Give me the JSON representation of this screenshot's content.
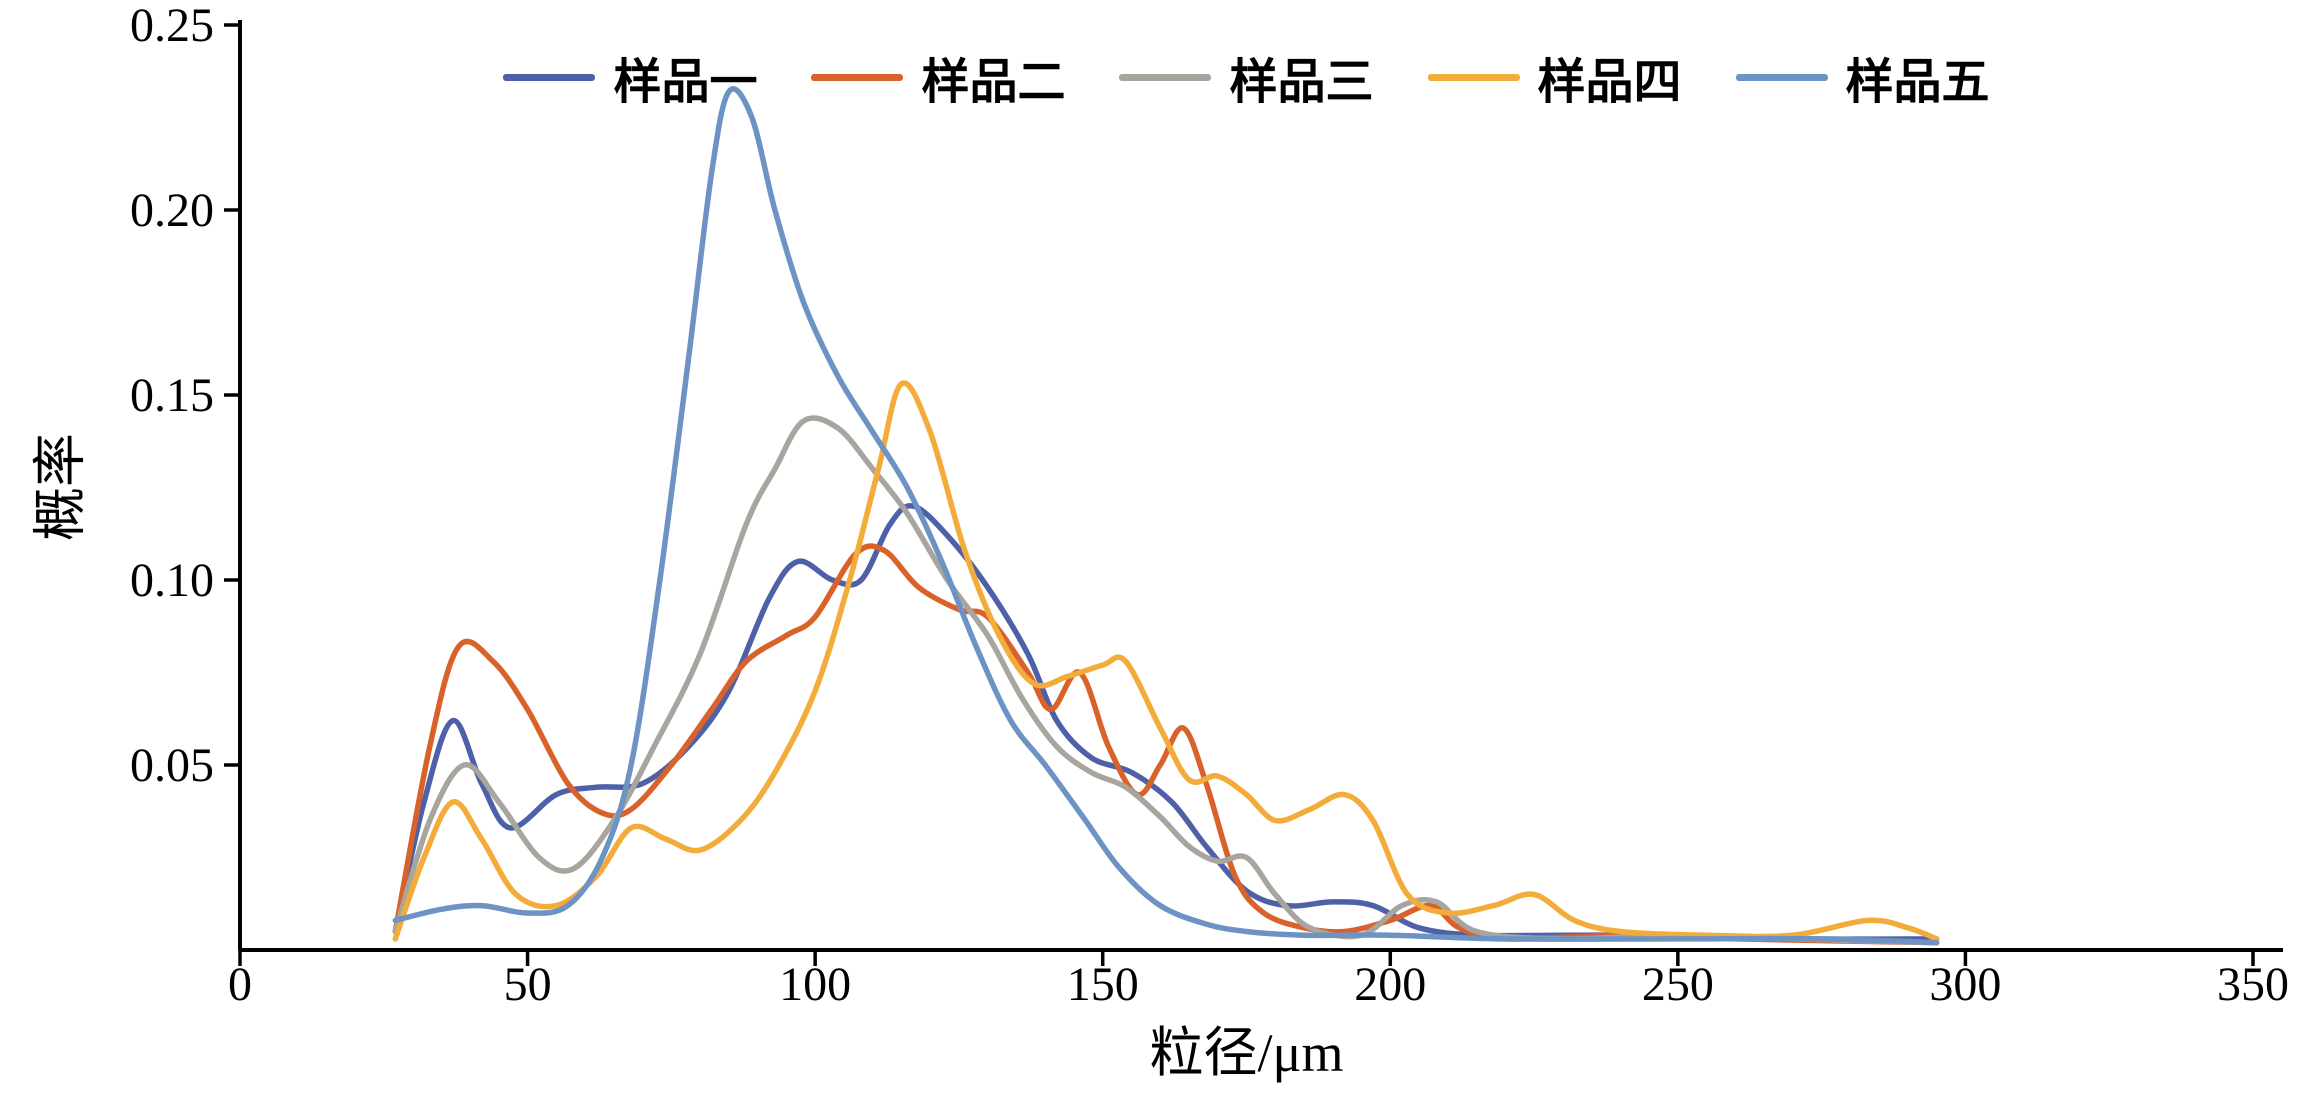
{
  "chart_data": {
    "type": "line",
    "title": "",
    "xlabel": "粒径/μm",
    "ylabel": "概率",
    "xlim": [
      0,
      350
    ],
    "ylim": [
      0,
      0.25
    ],
    "xticks": [
      0,
      50,
      100,
      150,
      200,
      250,
      300,
      350
    ],
    "yticks": [
      0.05,
      0.1,
      0.15,
      0.2,
      0.25
    ],
    "grid": false,
    "legend_position": "top-inside",
    "axis_color": "#000000",
    "series": [
      {
        "name": "样品一",
        "color": "#4e61a8",
        "points": [
          [
            27,
            0.005
          ],
          [
            32,
            0.04
          ],
          [
            37,
            0.062
          ],
          [
            42,
            0.045
          ],
          [
            47,
            0.033
          ],
          [
            55,
            0.042
          ],
          [
            62,
            0.044
          ],
          [
            70,
            0.045
          ],
          [
            78,
            0.055
          ],
          [
            85,
            0.07
          ],
          [
            92,
            0.095
          ],
          [
            97,
            0.105
          ],
          [
            103,
            0.1
          ],
          [
            108,
            0.1
          ],
          [
            113,
            0.115
          ],
          [
            117,
            0.12
          ],
          [
            123,
            0.112
          ],
          [
            130,
            0.098
          ],
          [
            137,
            0.08
          ],
          [
            142,
            0.062
          ],
          [
            148,
            0.052
          ],
          [
            155,
            0.048
          ],
          [
            162,
            0.04
          ],
          [
            168,
            0.028
          ],
          [
            175,
            0.016
          ],
          [
            182,
            0.012
          ],
          [
            190,
            0.013
          ],
          [
            197,
            0.012
          ],
          [
            205,
            0.006
          ],
          [
            215,
            0.004
          ],
          [
            230,
            0.004
          ],
          [
            250,
            0.004
          ],
          [
            270,
            0.003
          ],
          [
            295,
            0.003
          ]
        ]
      },
      {
        "name": "样品二",
        "color": "#d9622b",
        "points": [
          [
            27,
            0.005
          ],
          [
            33,
            0.055
          ],
          [
            38,
            0.082
          ],
          [
            44,
            0.078
          ],
          [
            50,
            0.065
          ],
          [
            57,
            0.045
          ],
          [
            63,
            0.037
          ],
          [
            68,
            0.038
          ],
          [
            75,
            0.05
          ],
          [
            82,
            0.065
          ],
          [
            88,
            0.078
          ],
          [
            95,
            0.085
          ],
          [
            100,
            0.09
          ],
          [
            107,
            0.107
          ],
          [
            112,
            0.108
          ],
          [
            118,
            0.098
          ],
          [
            125,
            0.092
          ],
          [
            130,
            0.09
          ],
          [
            137,
            0.075
          ],
          [
            141,
            0.065
          ],
          [
            146,
            0.075
          ],
          [
            151,
            0.055
          ],
          [
            156,
            0.042
          ],
          [
            160,
            0.05
          ],
          [
            164,
            0.06
          ],
          [
            168,
            0.045
          ],
          [
            173,
            0.02
          ],
          [
            178,
            0.01
          ],
          [
            185,
            0.006
          ],
          [
            192,
            0.005
          ],
          [
            200,
            0.008
          ],
          [
            207,
            0.012
          ],
          [
            212,
            0.006
          ],
          [
            220,
            0.003
          ],
          [
            240,
            0.004
          ],
          [
            260,
            0.003
          ],
          [
            295,
            0.002
          ]
        ]
      },
      {
        "name": "样品三",
        "color": "#a8a49e",
        "points": [
          [
            27,
            0.005
          ],
          [
            33,
            0.035
          ],
          [
            39,
            0.05
          ],
          [
            45,
            0.04
          ],
          [
            52,
            0.025
          ],
          [
            58,
            0.022
          ],
          [
            65,
            0.035
          ],
          [
            72,
            0.055
          ],
          [
            80,
            0.08
          ],
          [
            88,
            0.115
          ],
          [
            93,
            0.13
          ],
          [
            98,
            0.143
          ],
          [
            104,
            0.141
          ],
          [
            110,
            0.13
          ],
          [
            116,
            0.118
          ],
          [
            123,
            0.1
          ],
          [
            130,
            0.085
          ],
          [
            136,
            0.068
          ],
          [
            142,
            0.055
          ],
          [
            148,
            0.048
          ],
          [
            154,
            0.044
          ],
          [
            160,
            0.036
          ],
          [
            165,
            0.028
          ],
          [
            170,
            0.024
          ],
          [
            175,
            0.025
          ],
          [
            180,
            0.015
          ],
          [
            186,
            0.006
          ],
          [
            195,
            0.004
          ],
          [
            202,
            0.012
          ],
          [
            208,
            0.013
          ],
          [
            215,
            0.005
          ],
          [
            230,
            0.003
          ],
          [
            250,
            0.004
          ],
          [
            270,
            0.003
          ],
          [
            295,
            0.002
          ]
        ]
      },
      {
        "name": "样品四",
        "color": "#f3ab3a",
        "points": [
          [
            27,
            0.003
          ],
          [
            32,
            0.025
          ],
          [
            37,
            0.04
          ],
          [
            42,
            0.03
          ],
          [
            48,
            0.015
          ],
          [
            55,
            0.012
          ],
          [
            62,
            0.02
          ],
          [
            68,
            0.033
          ],
          [
            74,
            0.03
          ],
          [
            80,
            0.027
          ],
          [
            87,
            0.035
          ],
          [
            93,
            0.048
          ],
          [
            100,
            0.07
          ],
          [
            106,
            0.1
          ],
          [
            111,
            0.13
          ],
          [
            115,
            0.153
          ],
          [
            120,
            0.14
          ],
          [
            126,
            0.108
          ],
          [
            132,
            0.085
          ],
          [
            138,
            0.072
          ],
          [
            144,
            0.074
          ],
          [
            150,
            0.077
          ],
          [
            154,
            0.078
          ],
          [
            160,
            0.06
          ],
          [
            165,
            0.046
          ],
          [
            170,
            0.047
          ],
          [
            175,
            0.042
          ],
          [
            180,
            0.035
          ],
          [
            186,
            0.038
          ],
          [
            192,
            0.042
          ],
          [
            197,
            0.035
          ],
          [
            203,
            0.015
          ],
          [
            210,
            0.01
          ],
          [
            218,
            0.012
          ],
          [
            225,
            0.015
          ],
          [
            232,
            0.008
          ],
          [
            240,
            0.005
          ],
          [
            255,
            0.004
          ],
          [
            270,
            0.004
          ],
          [
            283,
            0.008
          ],
          [
            290,
            0.006
          ],
          [
            295,
            0.003
          ]
        ]
      },
      {
        "name": "样品五",
        "color": "#6d93c4",
        "points": [
          [
            27,
            0.008
          ],
          [
            35,
            0.011
          ],
          [
            42,
            0.012
          ],
          [
            50,
            0.01
          ],
          [
            57,
            0.012
          ],
          [
            63,
            0.025
          ],
          [
            68,
            0.05
          ],
          [
            73,
            0.1
          ],
          [
            78,
            0.16
          ],
          [
            82,
            0.21
          ],
          [
            85,
            0.232
          ],
          [
            89,
            0.225
          ],
          [
            93,
            0.2
          ],
          [
            98,
            0.175
          ],
          [
            104,
            0.155
          ],
          [
            110,
            0.14
          ],
          [
            116,
            0.125
          ],
          [
            122,
            0.105
          ],
          [
            128,
            0.082
          ],
          [
            134,
            0.062
          ],
          [
            140,
            0.05
          ],
          [
            147,
            0.035
          ],
          [
            153,
            0.022
          ],
          [
            160,
            0.012
          ],
          [
            168,
            0.007
          ],
          [
            175,
            0.005
          ],
          [
            185,
            0.004
          ],
          [
            200,
            0.004
          ],
          [
            220,
            0.003
          ],
          [
            250,
            0.003
          ],
          [
            275,
            0.003
          ],
          [
            295,
            0.002
          ]
        ]
      }
    ]
  }
}
